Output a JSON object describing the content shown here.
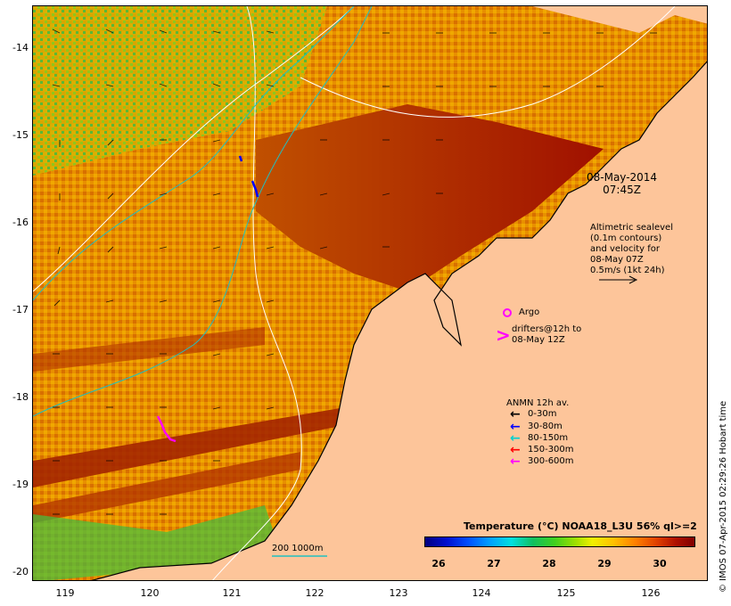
{
  "map": {
    "y_ticks": [
      "-14",
      "-15",
      "-16",
      "-17",
      "-18",
      "-19",
      "-20"
    ],
    "x_ticks": [
      "119",
      "120",
      "121",
      "122",
      "123",
      "124",
      "125",
      "126"
    ],
    "lat_range": [
      -20.07,
      -13.5
    ],
    "lon_range": [
      118.56,
      126.7
    ],
    "colors": {
      "land": "#fdc59a",
      "warm": "#a01000",
      "mid": "#e08000",
      "cool": "#e8c000",
      "green": "#40c040",
      "contour": "#ffffff",
      "bathy": "#20c0c0"
    }
  },
  "timestamp": {
    "line1": "08-May-2014",
    "line2": "07:45Z"
  },
  "altimetry": {
    "lines": [
      "Altimetric sealevel",
      "(0.1m contours)",
      "and velocity for",
      "08-May 07Z",
      "0.5m/s (1kt 24h)"
    ]
  },
  "argo": {
    "label": "Argo"
  },
  "drifters": {
    "line1": "drifters@12h to",
    "line2": "08-May 12Z"
  },
  "anmn": {
    "title": "ANMN 12h av.",
    "items": [
      {
        "label": "0-30m",
        "color": "#000000"
      },
      {
        "label": "30-80m",
        "color": "#0000ff"
      },
      {
        "label": "80-150m",
        "color": "#00d0d0"
      },
      {
        "label": "150-300m",
        "color": "#ff0000"
      },
      {
        "label": "300-600m",
        "color": "#ff00ff"
      }
    ]
  },
  "bathy_legend": {
    "label": "200  1000m"
  },
  "colorbar": {
    "title": "Temperature (°C) NOAA18_L3U 56% ql>=2",
    "ticks": [
      "26",
      "27",
      "28",
      "29",
      "30"
    ]
  },
  "credit": "© IMOS 07-Apr-2015 02:29:26 Hobart time"
}
